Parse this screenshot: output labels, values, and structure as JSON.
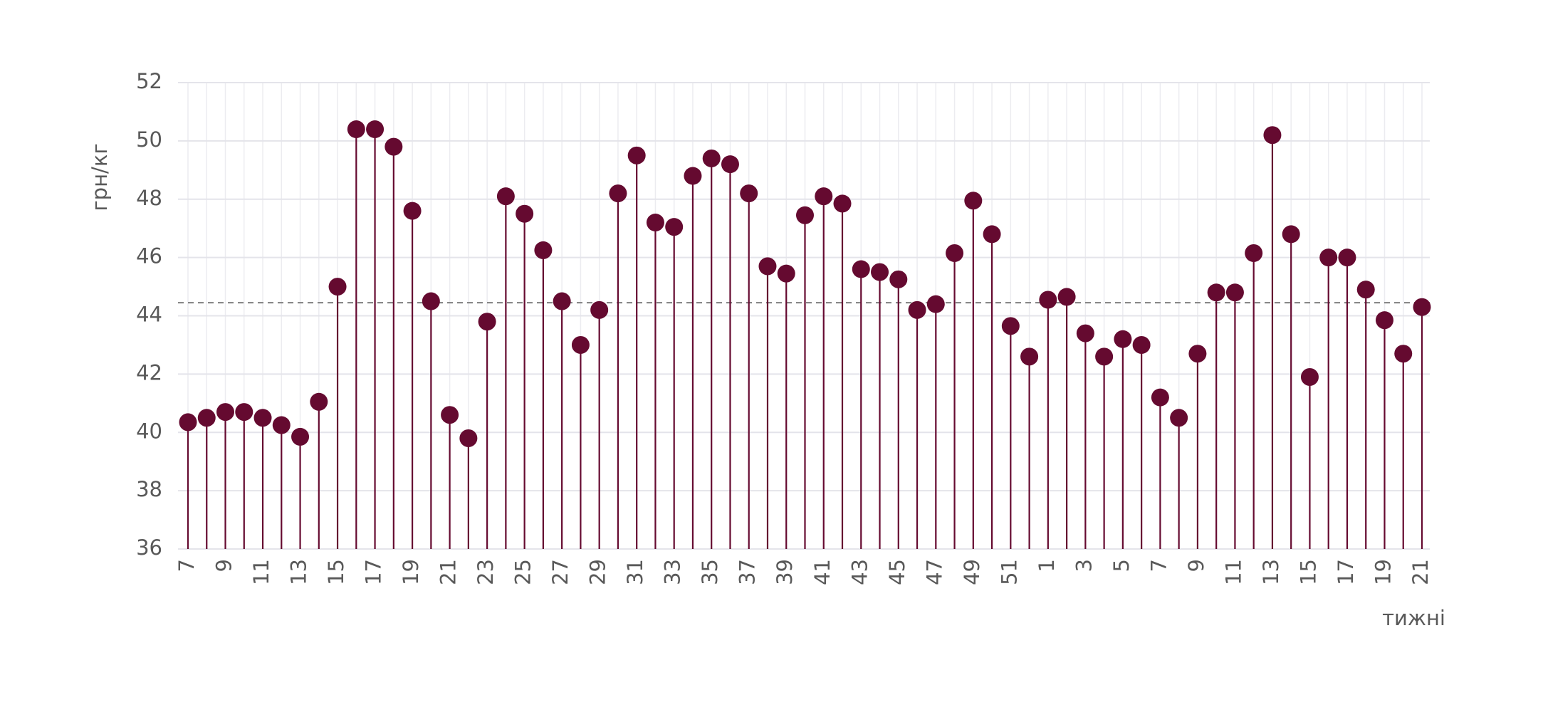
{
  "chart_data": {
    "type": "lollipop",
    "y_label": "грн/кг",
    "x_label": "тижні",
    "categories": [
      "7",
      null,
      "9",
      null,
      "11",
      null,
      "13",
      null,
      "15",
      null,
      "17",
      null,
      "19",
      null,
      "21",
      null,
      "23",
      null,
      "25",
      null,
      "27",
      null,
      "29",
      null,
      "31",
      null,
      "33",
      null,
      "35",
      null,
      "37",
      null,
      "39",
      null,
      "41",
      null,
      "43",
      null,
      "45",
      null,
      "47",
      null,
      "49",
      null,
      "51",
      null,
      "1",
      null,
      "3",
      null,
      "5",
      null,
      "7",
      null,
      "9",
      null,
      "11",
      null,
      "13",
      null,
      "15",
      null,
      "17",
      null,
      "19",
      null,
      "21"
    ],
    "values": [
      40.35,
      40.5,
      40.7,
      40.7,
      40.5,
      40.25,
      39.85,
      41.05,
      45.0,
      50.4,
      50.4,
      49.8,
      47.6,
      44.5,
      40.6,
      39.8,
      43.8,
      48.1,
      47.5,
      46.25,
      44.5,
      43.0,
      44.2,
      48.2,
      49.5,
      47.2,
      47.05,
      48.8,
      49.4,
      49.2,
      48.2,
      45.7,
      45.45,
      47.45,
      48.1,
      47.85,
      45.6,
      45.5,
      45.25,
      44.2,
      44.4,
      46.15,
      47.95,
      46.8,
      43.65,
      42.6,
      44.55,
      44.65,
      43.4,
      42.6,
      43.2,
      43.0,
      41.2,
      40.5,
      42.7,
      44.8,
      44.8,
      46.15,
      50.2,
      46.8,
      41.9,
      46.0,
      46.0,
      44.9,
      43.85,
      42.7,
      44.3
    ],
    "color": "#650a30",
    "reference_line": 44.45,
    "ylim": [
      36,
      52
    ],
    "yticks": [
      36,
      38,
      40,
      42,
      44,
      46,
      48,
      50,
      52
    ],
    "grid": true
  }
}
